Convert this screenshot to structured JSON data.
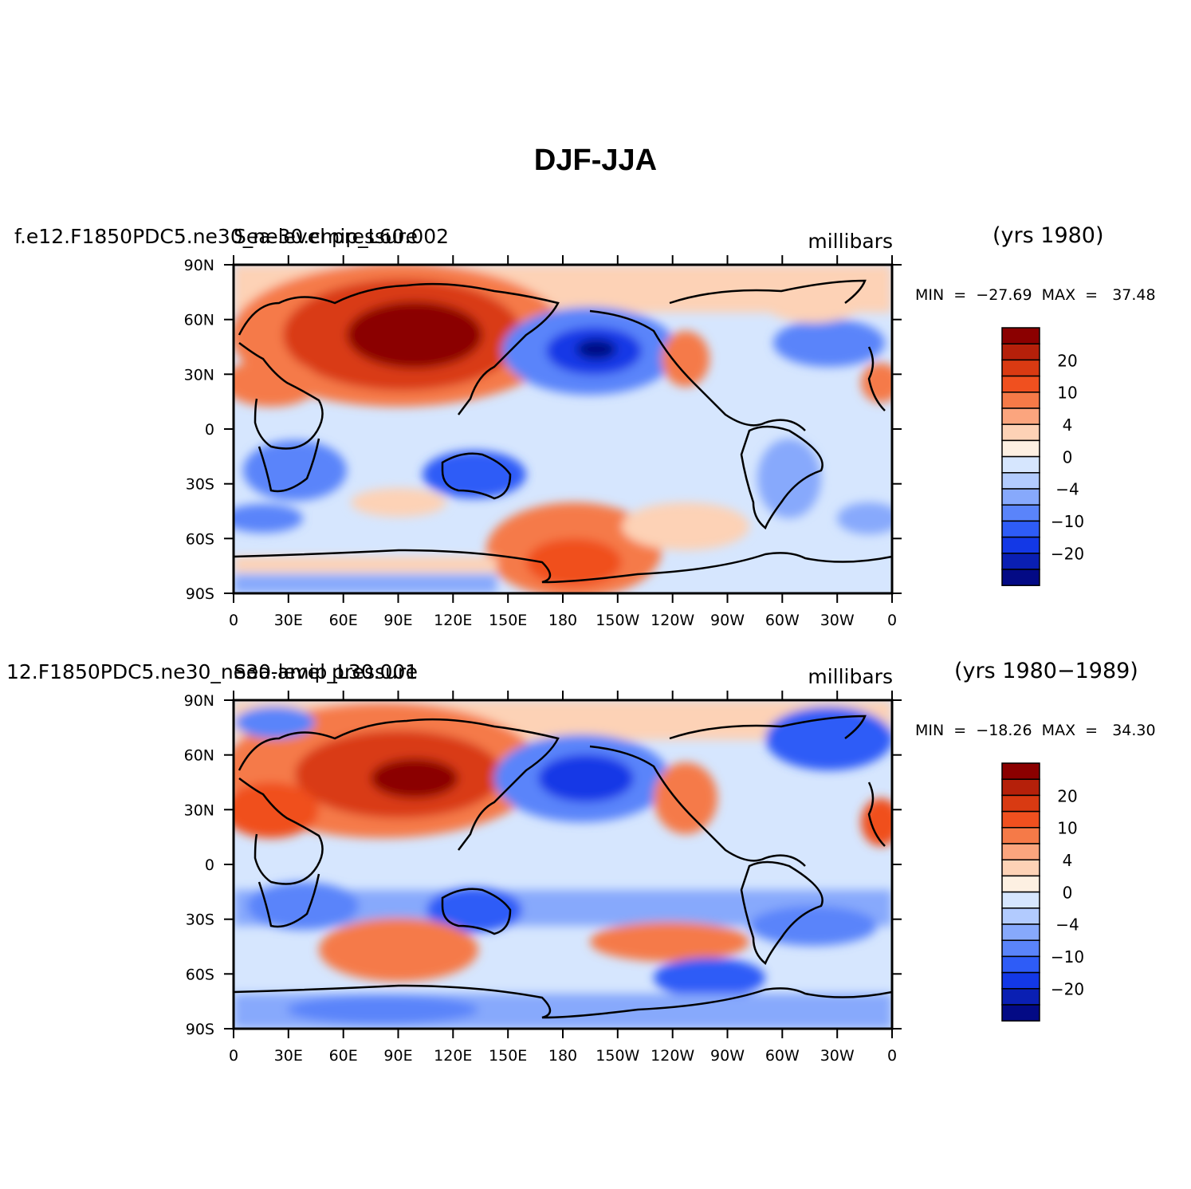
{
  "title": "DJF-JJA",
  "panels": [
    {
      "case_name": "f.e12.F1850PDC5.ne30_ne30.cmip_L60.002",
      "variable": "Sea-level pressure",
      "units": "millibars",
      "years": "(yrs  1980)",
      "minmax": "MIN  =  −27.69  MAX  =   37.48",
      "min": -27.69,
      "max": 37.48
    },
    {
      "case_name": "12.F1850PDC5.ne30_ne30.amip_L30.001",
      "variable": "Sea-level pressure",
      "units": "millibars",
      "years": "(yrs  1980−1989)",
      "minmax": "MIN  =  −18.26  MAX  =   34.30",
      "min": -18.26,
      "max": 34.3
    }
  ],
  "axes": {
    "lon_ticks": [
      "0",
      "30E",
      "60E",
      "90E",
      "120E",
      "150E",
      "180",
      "150W",
      "120W",
      "90W",
      "60W",
      "30W",
      "0"
    ],
    "lat_ticks": [
      "90N",
      "60N",
      "30N",
      "0",
      "30S",
      "60S",
      "90S"
    ]
  },
  "colorbar": {
    "labels": [
      "20",
      "10",
      "4",
      "0",
      "−4",
      "−10",
      "−20"
    ],
    "colors": [
      "#8b0000",
      "#b5200a",
      "#d93a12",
      "#f0501f",
      "#f57a48",
      "#fba57e",
      "#fdd2b6",
      "#fdf0e2",
      "#d6e6fe",
      "#b2cbfe",
      "#87a9fc",
      "#5a84fa",
      "#2e5cf7",
      "#1338e6",
      "#0a1fb3",
      "#030a85"
    ]
  }
}
